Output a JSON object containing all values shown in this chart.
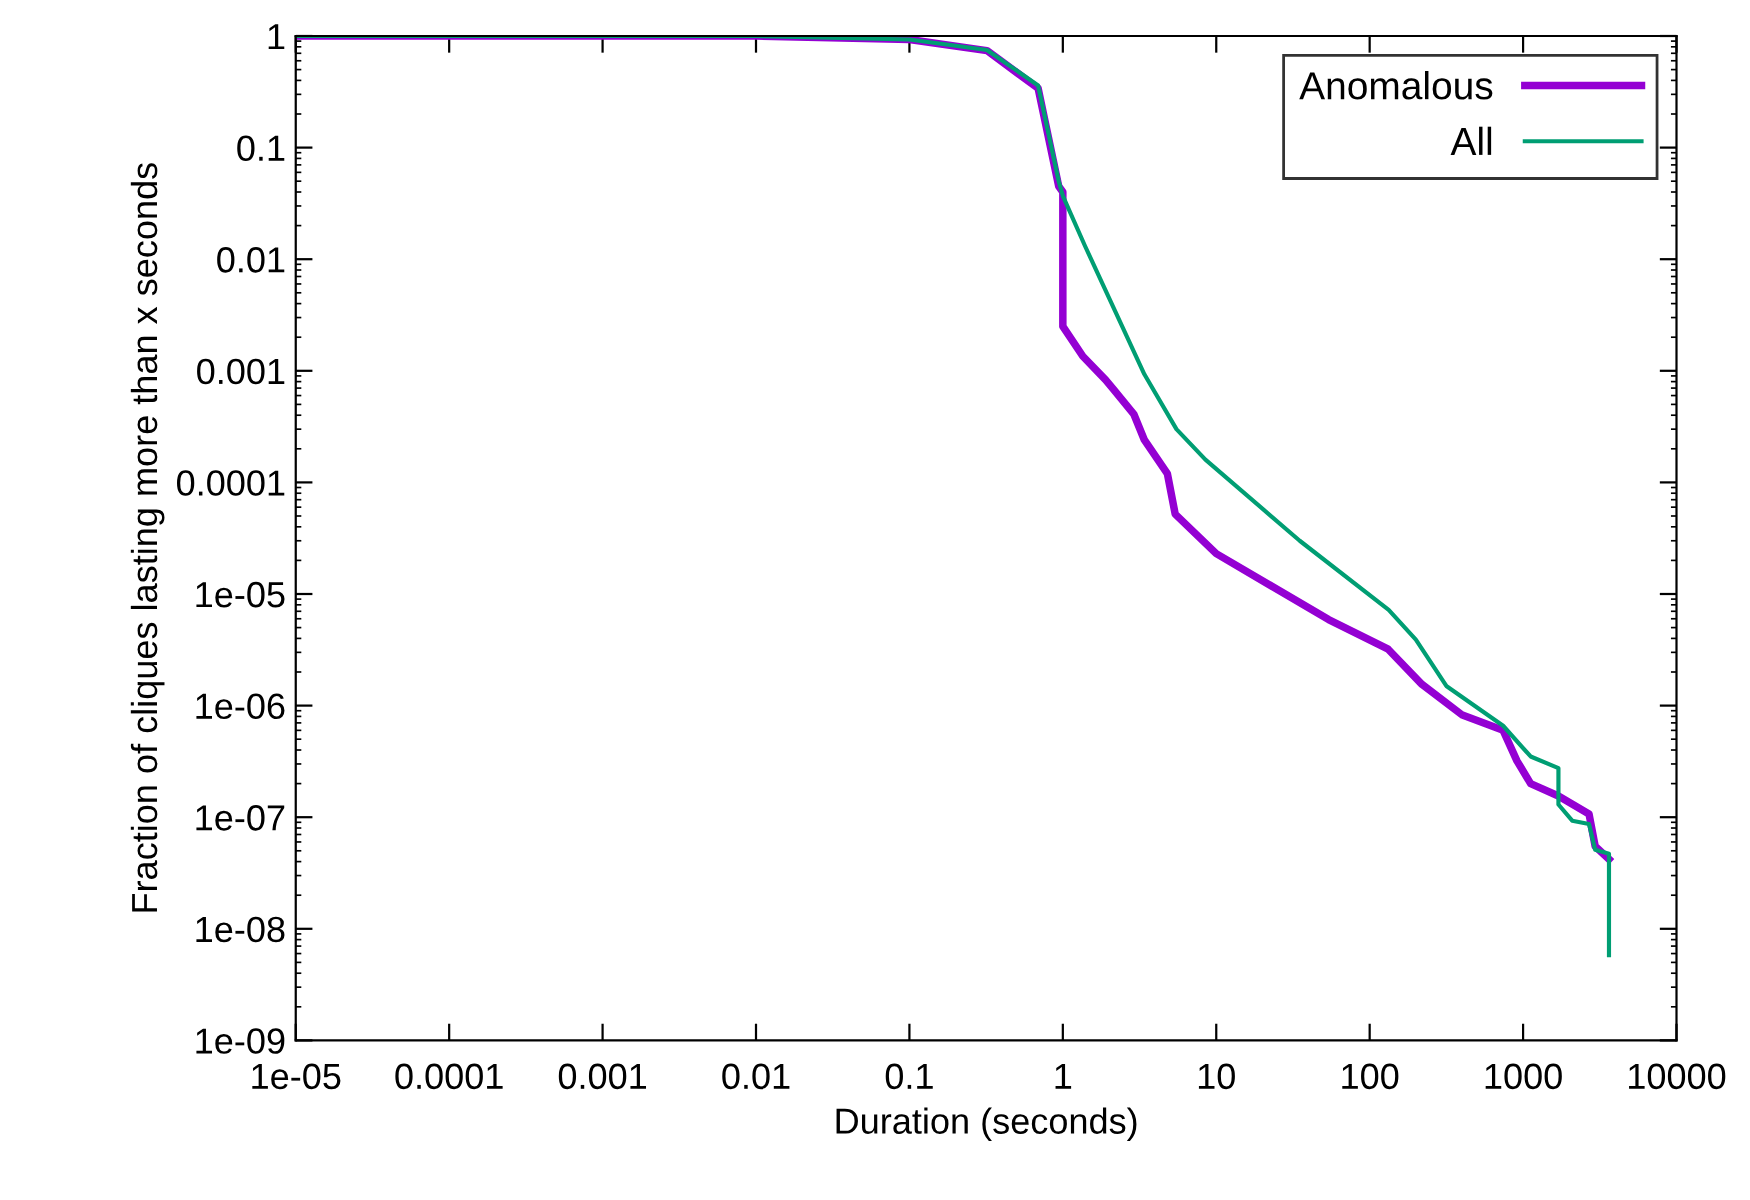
{
  "chart_data": {
    "type": "line",
    "xlabel": "Duration (seconds)",
    "ylabel": "Fraction of cliques lasting more than x seconds",
    "log": "xy",
    "xlim": [
      1e-05,
      10000
    ],
    "ylim": [
      1e-09,
      1
    ],
    "xticks": [
      1e-05,
      0.0001,
      0.001,
      0.01,
      0.1,
      1,
      10,
      100,
      1000,
      10000
    ],
    "yticks": [
      1e-09,
      1e-08,
      1e-07,
      1e-06,
      1e-05,
      0.0001,
      0.001,
      0.01,
      0.1,
      1
    ],
    "grid": false,
    "legend": "top right",
    "line_style": "solid",
    "marker": "none",
    "series": [
      {
        "name": "Anomalous",
        "color": "#9400d3",
        "x": [
          1e-05,
          0.01,
          0.1,
          0.32,
          0.69,
          0.94,
          1.0,
          1.0,
          1.35,
          1.9,
          2.14,
          2.9,
          3.4,
          4.8,
          5.4,
          10,
          54,
          132,
          219,
          398,
          741,
          912,
          1120,
          1700,
          2690,
          2950,
          3630
        ],
        "values": [
          1,
          1,
          0.93,
          0.74,
          0.34,
          0.045,
          0.04,
          0.0025,
          0.00135,
          0.00083,
          0.00068,
          0.00041,
          0.00024,
          0.00012,
          5.2e-05,
          2.3e-05,
          5.9e-06,
          3.2e-06,
          1.55e-06,
          8.3e-07,
          6e-07,
          3.2e-07,
          2e-07,
          1.55e-07,
          1.07e-07,
          5.5e-08,
          4.2e-08
        ]
      },
      {
        "name": "All",
        "color": "#009e73",
        "x": [
          1e-05,
          0.01,
          0.1,
          0.32,
          0.69,
          0.94,
          1.0,
          1.4,
          3.4,
          5.5,
          8.5,
          35,
          133,
          200,
          316,
          741,
          1120,
          1700,
          1700,
          2090,
          2690,
          2950,
          3630,
          3630
        ],
        "values": [
          1,
          1,
          0.93,
          0.75,
          0.36,
          0.05,
          0.037,
          0.013,
          0.00093,
          0.0003,
          0.00016,
          3e-05,
          7.2e-06,
          3.9e-06,
          1.5e-06,
          6.6e-07,
          3.5e-07,
          2.75e-07,
          1.3e-07,
          9.3e-08,
          8.7e-08,
          5.1e-08,
          4.7e-08,
          5.8e-09
        ]
      }
    ]
  }
}
